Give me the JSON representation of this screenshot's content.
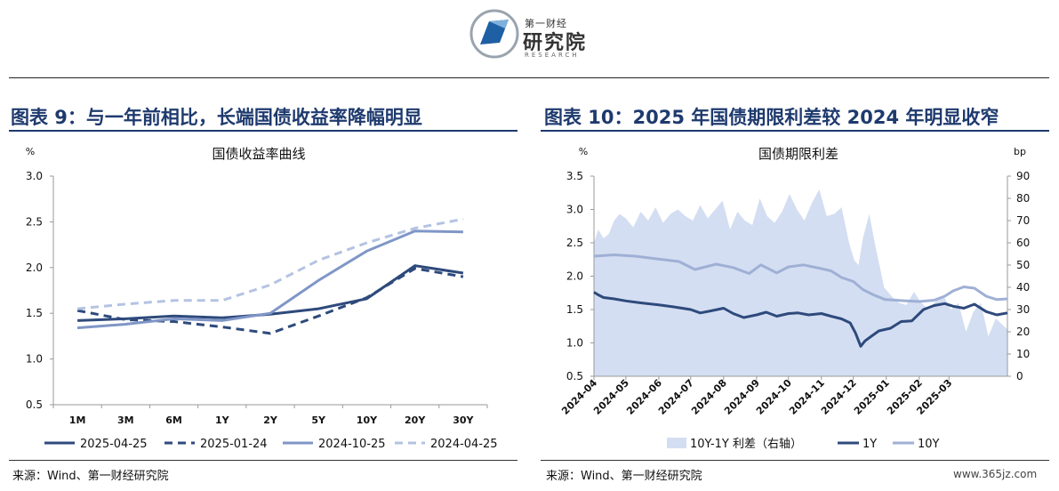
{
  "logo": {
    "small": "第一财经",
    "big": "研究院",
    "en": "RESEARCH"
  },
  "left": {
    "heading": "图表 9：与一年前相比，长端国债收益率降幅明显",
    "source": "来源：Wind、第一财经研究院"
  },
  "right": {
    "heading": "图表 10：2025 年国债期限利差较 2024 年明显收窄",
    "source": "来源：Wind、第一财经研究院"
  },
  "watermark": "www.365jz.com",
  "colors": {
    "dark": "#2e4a7c",
    "mid": "#7f96c6",
    "light": "#b4c3e2",
    "area": "#d4def2",
    "heading": "#1e3a6e"
  },
  "chart_data": [
    {
      "type": "line",
      "title": "国债收益率曲线",
      "ylabel": "%",
      "ylim": [
        0.5,
        3.0
      ],
      "yticks": [
        "0.5",
        "1.0",
        "1.5",
        "2.0",
        "2.5",
        "3.0"
      ],
      "categories": [
        "1M",
        "3M",
        "6M",
        "1Y",
        "2Y",
        "5Y",
        "10Y",
        "20Y",
        "30Y"
      ],
      "grid": false,
      "legend": "bottom",
      "series": [
        {
          "name": "2025-04-25",
          "style": "solid",
          "color": "#2e4a7c",
          "values": [
            1.42,
            1.44,
            1.47,
            1.45,
            1.49,
            1.55,
            1.66,
            2.02,
            1.94
          ]
        },
        {
          "name": "2025-01-24",
          "style": "dashed",
          "color": "#2e4a7c",
          "values": [
            1.53,
            1.43,
            1.41,
            1.35,
            1.28,
            1.47,
            1.67,
            1.99,
            1.9
          ]
        },
        {
          "name": "2024-10-25",
          "style": "solid",
          "color": "#7f96c6",
          "values": [
            1.34,
            1.38,
            1.44,
            1.42,
            1.5,
            1.86,
            2.18,
            2.4,
            2.39
          ]
        },
        {
          "name": "2024-04-25",
          "style": "dashed",
          "color": "#b4c3e2",
          "values": [
            1.55,
            1.6,
            1.64,
            1.64,
            1.81,
            2.08,
            2.27,
            2.43,
            2.53
          ]
        }
      ]
    },
    {
      "type": "line",
      "title": "国债期限利差",
      "ylabel_left": "%",
      "ylabel_right": "bp",
      "ylim_left": [
        0.5,
        3.5
      ],
      "ylim_right": [
        0,
        90
      ],
      "yticks_left": [
        "0.5",
        "1.0",
        "1.5",
        "2.0",
        "2.5",
        "3.0",
        "3.5"
      ],
      "yticks_right": [
        "0",
        "10",
        "20",
        "30",
        "40",
        "50",
        "60",
        "70",
        "80",
        "90"
      ],
      "x_tick_labels": [
        "2024-04",
        "2024-05",
        "2024-06",
        "2024-07",
        "2024-08",
        "2024-09",
        "2024-10",
        "2024-11",
        "2024-12",
        "2025-01",
        "2025-02",
        "2025-03"
      ],
      "x_range": [
        "2024-04-01",
        "2025-04-25"
      ],
      "grid": false,
      "legend": "bottom",
      "series": [
        {
          "name": "10Y-1Y 利差（右轴）",
          "kind": "area",
          "axis": "right",
          "color": "#d4def2",
          "x": [
            "2024-04-01",
            "2024-04-05",
            "2024-04-10",
            "2024-04-15",
            "2024-04-20",
            "2024-04-25",
            "2024-05-01",
            "2024-05-08",
            "2024-05-15",
            "2024-05-22",
            "2024-05-29",
            "2024-06-05",
            "2024-06-12",
            "2024-06-19",
            "2024-06-26",
            "2024-07-03",
            "2024-07-10",
            "2024-07-17",
            "2024-07-24",
            "2024-07-31",
            "2024-08-07",
            "2024-08-14",
            "2024-08-21",
            "2024-08-28",
            "2024-09-04",
            "2024-09-11",
            "2024-09-18",
            "2024-09-25",
            "2024-10-02",
            "2024-10-09",
            "2024-10-16",
            "2024-10-23",
            "2024-10-30",
            "2024-11-06",
            "2024-11-13",
            "2024-11-20",
            "2024-11-27",
            "2024-12-02",
            "2024-12-06",
            "2024-12-10",
            "2024-12-16",
            "2024-12-22",
            "2024-12-30",
            "2025-01-06",
            "2025-01-13",
            "2025-01-20",
            "2025-01-27",
            "2025-02-03",
            "2025-02-10",
            "2025-02-17",
            "2025-02-24",
            "2025-03-03",
            "2025-03-10",
            "2025-03-17",
            "2025-03-24",
            "2025-03-31",
            "2025-04-07",
            "2025-04-14",
            "2025-04-25"
          ],
          "values": [
            60,
            66,
            62,
            64,
            70,
            73,
            71,
            67,
            74,
            70,
            76,
            69,
            73,
            75,
            72,
            70,
            77,
            71,
            75,
            79,
            66,
            74,
            70,
            68,
            80,
            72,
            69,
            74,
            82,
            75,
            70,
            78,
            84,
            72,
            73,
            76,
            60,
            52,
            50,
            62,
            73,
            58,
            40,
            36,
            33,
            32,
            38,
            33,
            30,
            34,
            36,
            30,
            33,
            20,
            29,
            33,
            18,
            26,
            21
          ]
        },
        {
          "name": "1Y",
          "kind": "line",
          "axis": "left",
          "color": "#2e4a7c",
          "x": [
            "2024-04-01",
            "2024-04-05",
            "2024-04-10",
            "2024-04-20",
            "2024-05-01",
            "2024-05-15",
            "2024-06-01",
            "2024-06-15",
            "2024-07-01",
            "2024-07-10",
            "2024-07-20",
            "2024-08-01",
            "2024-08-10",
            "2024-08-20",
            "2024-09-01",
            "2024-09-10",
            "2024-09-20",
            "2024-10-01",
            "2024-10-10",
            "2024-10-20",
            "2024-11-01",
            "2024-11-10",
            "2024-11-20",
            "2024-11-28",
            "2024-12-03",
            "2024-12-08",
            "2024-12-12",
            "2024-12-18",
            "2024-12-25",
            "2025-01-05",
            "2025-01-15",
            "2025-01-25",
            "2025-02-05",
            "2025-02-15",
            "2025-02-25",
            "2025-03-05",
            "2025-03-15",
            "2025-03-25",
            "2025-04-05",
            "2025-04-15",
            "2025-04-25"
          ],
          "values": [
            1.76,
            1.72,
            1.68,
            1.66,
            1.63,
            1.6,
            1.57,
            1.54,
            1.5,
            1.45,
            1.48,
            1.52,
            1.44,
            1.38,
            1.42,
            1.46,
            1.4,
            1.44,
            1.45,
            1.42,
            1.44,
            1.4,
            1.36,
            1.3,
            1.15,
            0.95,
            1.03,
            1.1,
            1.18,
            1.22,
            1.32,
            1.33,
            1.5,
            1.56,
            1.59,
            1.55,
            1.52,
            1.58,
            1.47,
            1.42,
            1.45
          ]
        },
        {
          "name": "10Y",
          "kind": "line",
          "axis": "left",
          "color": "#9fb0d5",
          "x": [
            "2024-04-01",
            "2024-04-20",
            "2024-05-10",
            "2024-05-30",
            "2024-06-20",
            "2024-07-05",
            "2024-07-25",
            "2024-08-10",
            "2024-08-25",
            "2024-09-05",
            "2024-09-20",
            "2024-10-01",
            "2024-10-15",
            "2024-10-30",
            "2024-11-10",
            "2024-11-20",
            "2024-12-01",
            "2024-12-10",
            "2024-12-20",
            "2024-12-31",
            "2025-01-10",
            "2025-01-20",
            "2025-02-01",
            "2025-02-15",
            "2025-02-25",
            "2025-03-05",
            "2025-03-15",
            "2025-03-25",
            "2025-04-05",
            "2025-04-15",
            "2025-04-25"
          ],
          "values": [
            2.3,
            2.32,
            2.3,
            2.26,
            2.22,
            2.1,
            2.18,
            2.13,
            2.04,
            2.17,
            2.05,
            2.14,
            2.17,
            2.12,
            2.08,
            1.98,
            1.92,
            1.8,
            1.72,
            1.65,
            1.64,
            1.63,
            1.62,
            1.64,
            1.7,
            1.78,
            1.84,
            1.82,
            1.7,
            1.65,
            1.66
          ]
        }
      ]
    }
  ]
}
